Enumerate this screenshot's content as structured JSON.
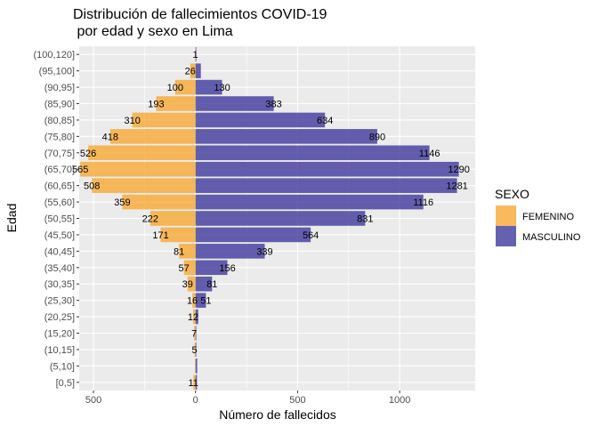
{
  "chart_data": {
    "type": "bar",
    "orientation": "horizontal-diverging",
    "title": "Distribución de fallecimientos COVID-19",
    "subtitle": " por edad y sexo en Lima",
    "xlabel": "Número de fallecidos",
    "ylabel": "Edad",
    "xlim": [
      -570,
      1370
    ],
    "xticks": [
      -500,
      0,
      500,
      1000
    ],
    "xtick_labels": [
      "500",
      "0",
      "500",
      "1000"
    ],
    "grid": true,
    "legend_title": "SEXO",
    "legend_position": "right",
    "categories": [
      "[0,5]",
      "(5,10]",
      "(10,15]",
      "(15,20]",
      "(20,25]",
      "(25,30]",
      "(30,35]",
      "(35,40]",
      "(40,45]",
      "(45,50]",
      "(50,55]",
      "(55,60]",
      "(60,65]",
      "(65,70]",
      "(70,75]",
      "(75,80]",
      "(80,85]",
      "(85,90]",
      "(90,95]",
      "(95,100]",
      "(100,120]"
    ],
    "series": [
      {
        "name": "FEMENINO",
        "color": "#F7A934",
        "values": [
          11,
          2,
          5,
          7,
          12,
          16,
          39,
          57,
          81,
          171,
          222,
          359,
          508,
          565,
          526,
          418,
          310,
          193,
          100,
          26,
          1
        ],
        "labels": [
          "11",
          "",
          "5",
          "7",
          "12",
          "16",
          "39",
          "57",
          "81",
          "171",
          "222",
          "359",
          "508",
          "565",
          "526",
          "418",
          "310",
          "193",
          "100",
          "26",
          "1"
        ]
      },
      {
        "name": "MASCULINO",
        "color": "#3F3A9C",
        "values": [
          7,
          8,
          2,
          2,
          13,
          51,
          81,
          156,
          339,
          564,
          831,
          1116,
          1281,
          1290,
          1146,
          890,
          634,
          383,
          130,
          26,
          3
        ],
        "labels": [
          "",
          "",
          "",
          "",
          "",
          "51",
          "81",
          "156",
          "339",
          "564",
          "831",
          "1116",
          "1281",
          "1290",
          "1146",
          "890",
          "634",
          "383",
          "130",
          "",
          ""
        ]
      }
    ]
  }
}
